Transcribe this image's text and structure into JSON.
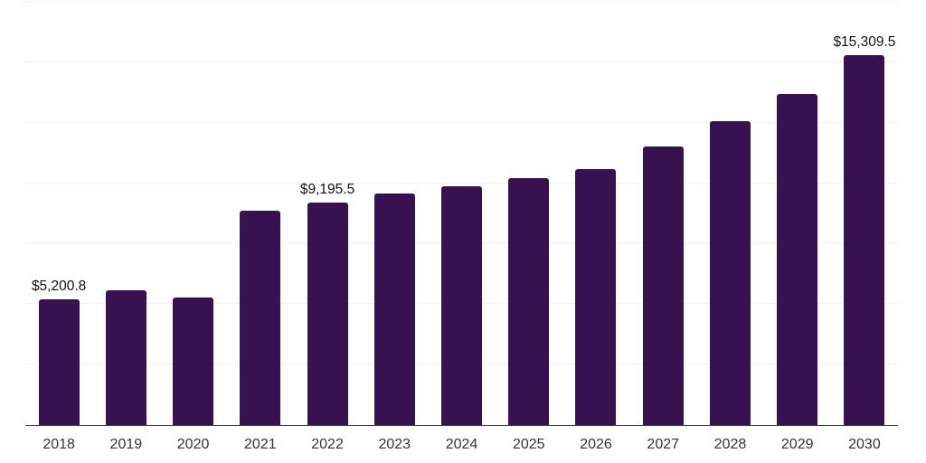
{
  "chart_data": {
    "type": "bar",
    "title": "",
    "xlabel": "",
    "ylabel": "",
    "categories": [
      "2018",
      "2019",
      "2020",
      "2021",
      "2022",
      "2023",
      "2024",
      "2025",
      "2026",
      "2027",
      "2028",
      "2029",
      "2030"
    ],
    "values": [
      5200.8,
      5570,
      5260,
      8850,
      9195.5,
      9575,
      9860,
      10225,
      10575,
      11510,
      12580,
      13705,
      15309.5
    ],
    "data_labels": [
      "$5,200.8",
      null,
      null,
      null,
      "$9,195.5",
      null,
      null,
      null,
      null,
      null,
      null,
      null,
      "$15,309.5"
    ],
    "ylim": [
      0,
      17500
    ],
    "gridline_step": 2500,
    "grid": true,
    "legend": false,
    "colors": {
      "bar": "#371150",
      "gridline": "#f1f1f4",
      "axis": "#3c3c3c",
      "value_label": "#111111",
      "tick_label": "#333333",
      "background": "#ffffff"
    }
  }
}
